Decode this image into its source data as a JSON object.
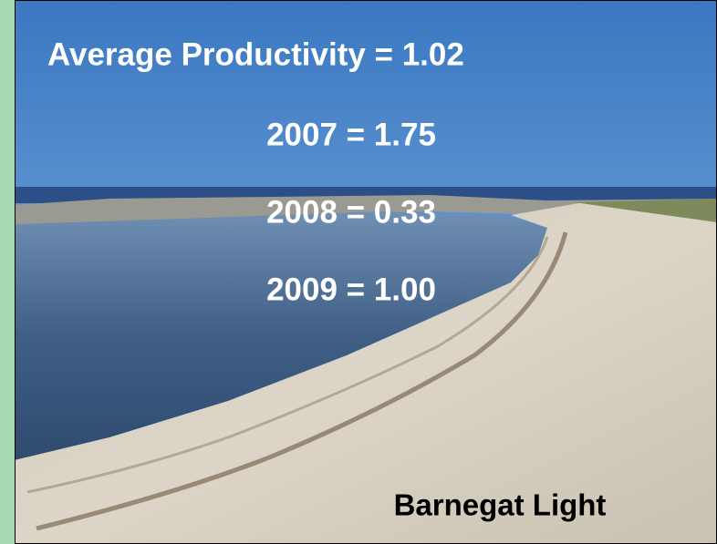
{
  "title": "Average Productivity = 1.02",
  "lines": [
    "2007 = 1.75",
    "2008 = 0.33",
    "2009 = 1.00"
  ],
  "caption": "Barnegat Light"
}
